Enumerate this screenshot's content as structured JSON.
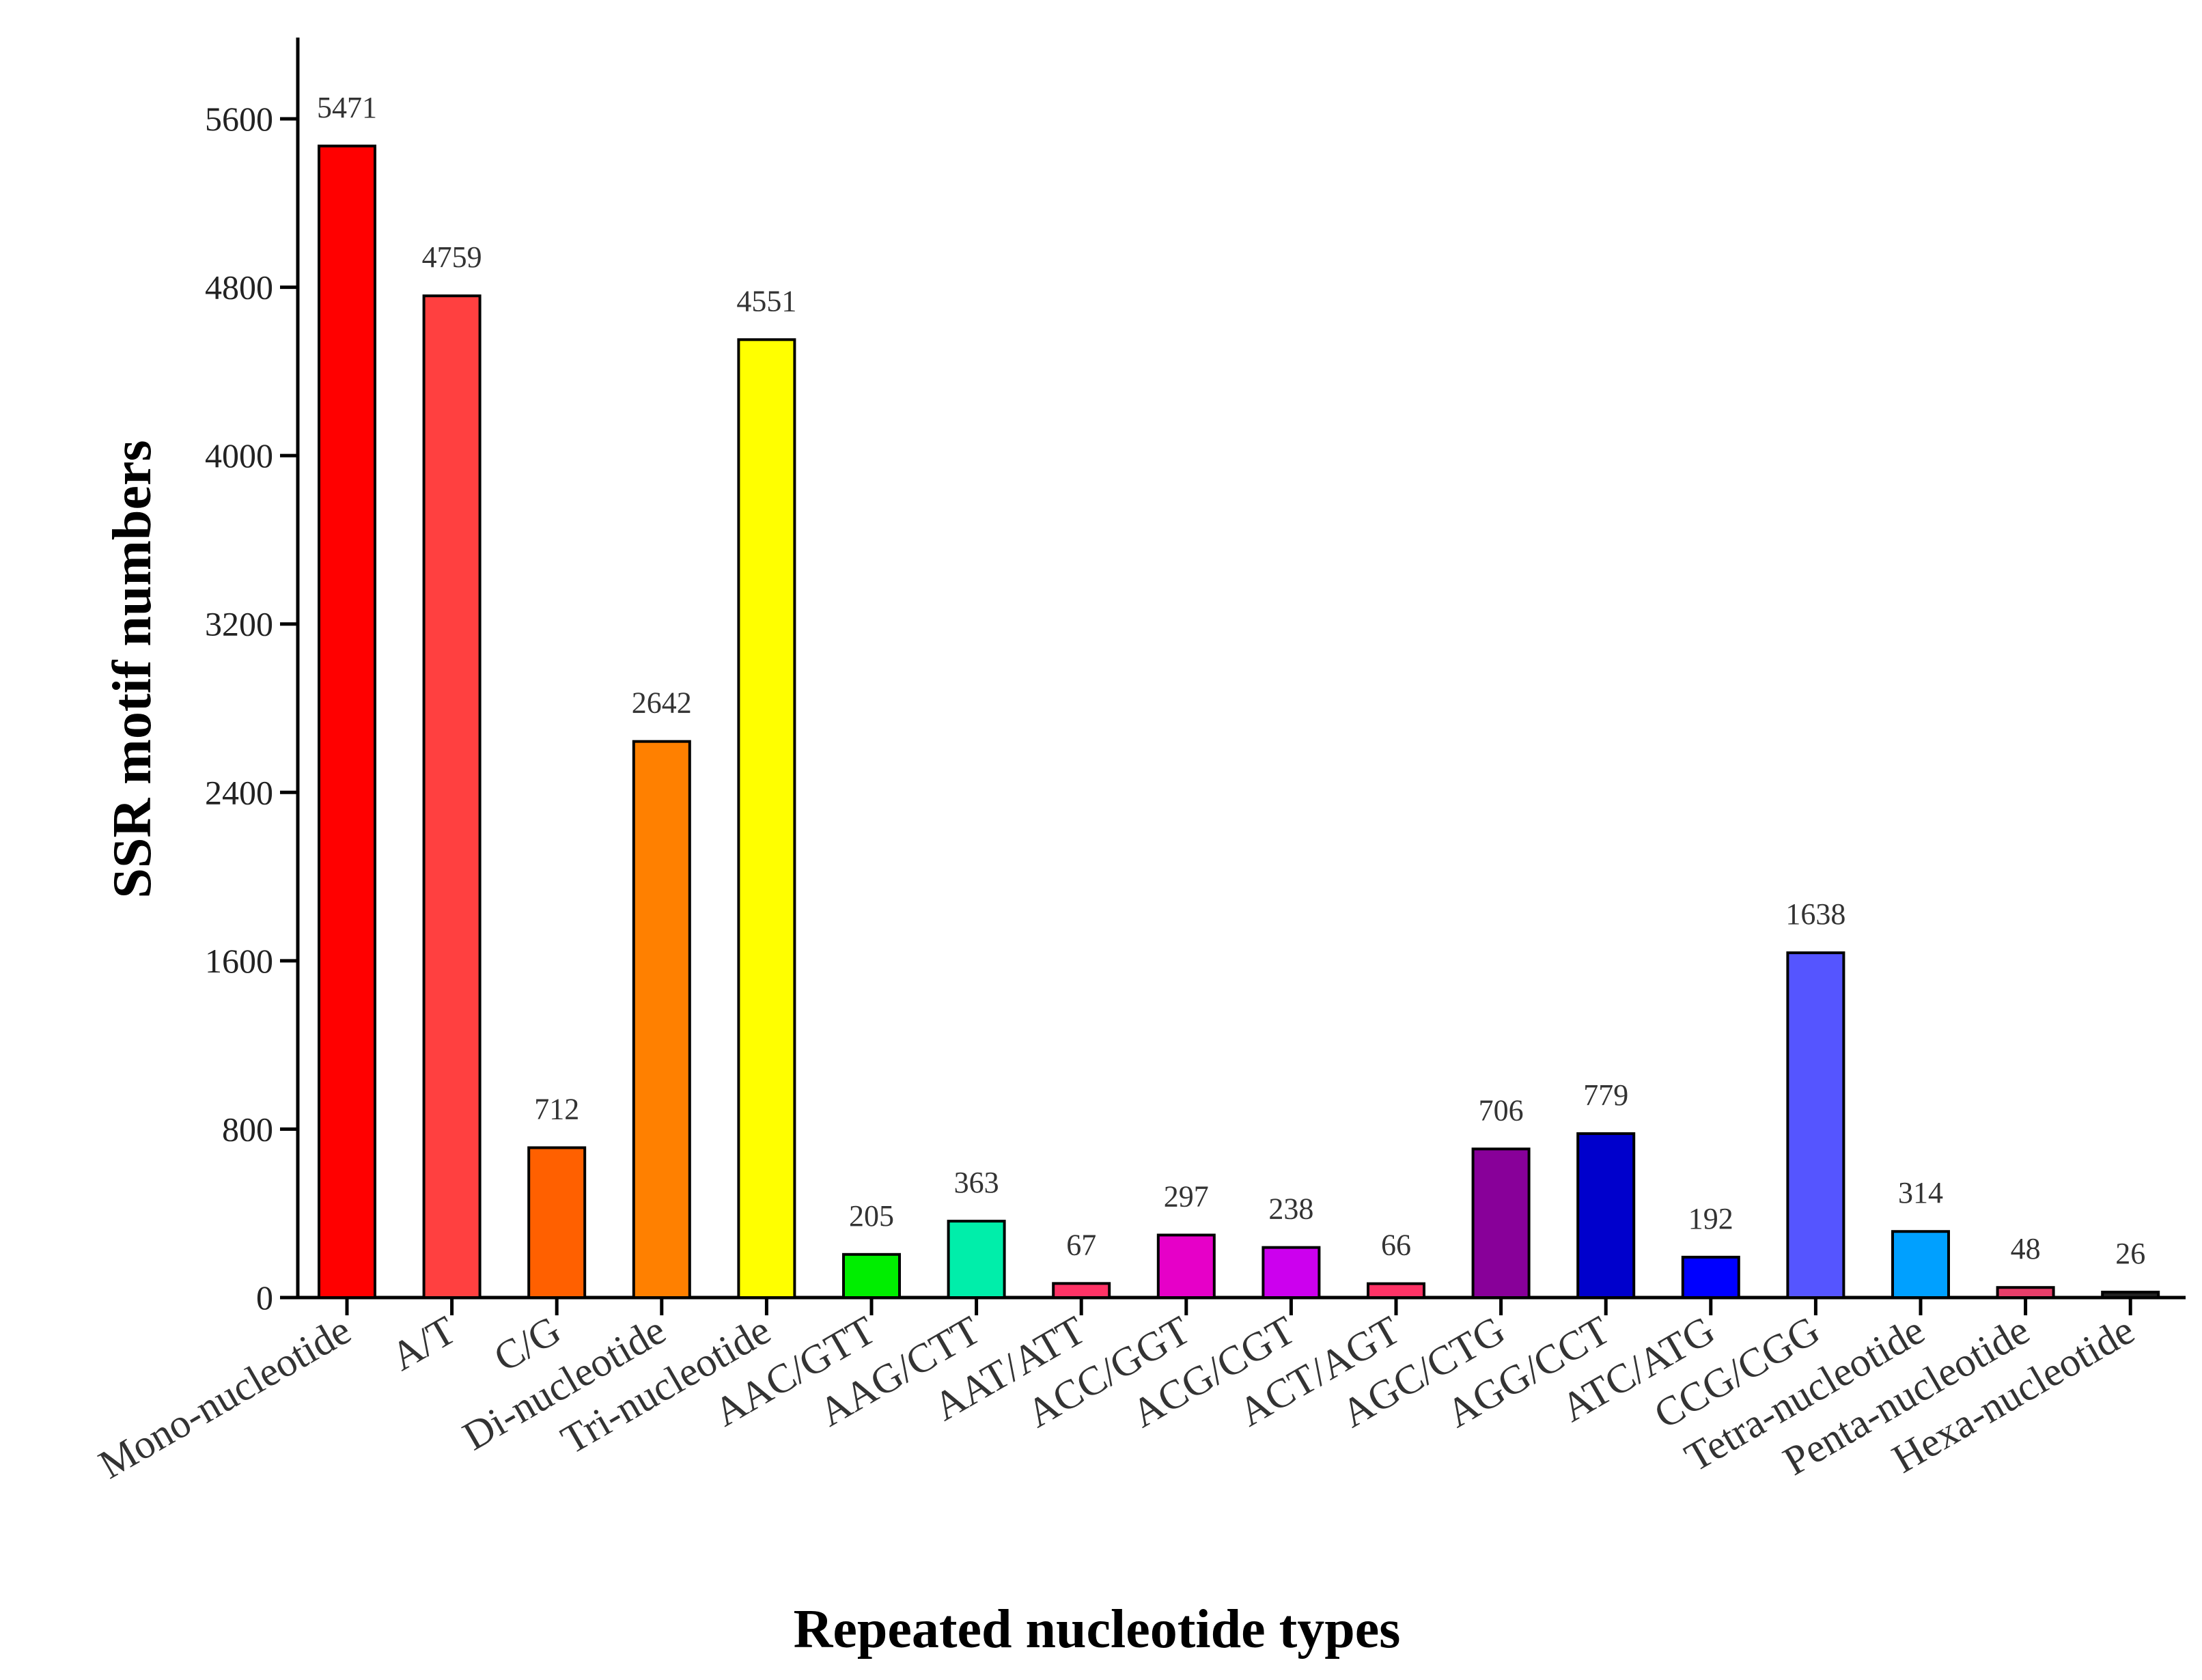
{
  "chart_data": {
    "type": "bar",
    "title": "",
    "xlabel": "Repeated nucleotide types",
    "ylabel": "SSR motif numbers",
    "ylim": [
      0,
      6000
    ],
    "yticks": [
      0,
      800,
      1600,
      2400,
      3200,
      4000,
      4800,
      5600
    ],
    "grid": false,
    "legend": "none",
    "categories": [
      "Mono-nucleotide",
      "A/T",
      "C/G",
      "Di-nucleotide",
      "Tri-nucleotide",
      "AAC/GTT",
      "AAG/CTT",
      "AAT/ATT",
      "ACC/GGT",
      "ACG/CGT",
      "ACT/AGT",
      "AGC/CTG",
      "AGG/CCT",
      "ATC/ATG",
      "CCG/CGG",
      "Tetra-nucleotide",
      "Penta-nucleotide",
      "Hexa-nucleotide"
    ],
    "values": [
      5471,
      4759,
      712,
      2642,
      4551,
      205,
      363,
      67,
      297,
      238,
      66,
      706,
      779,
      192,
      1638,
      314,
      48,
      26
    ],
    "colors": [
      "#ff0000",
      "#ff4040",
      "#ff6000",
      "#ff8000",
      "#ffff00",
      "#00ee00",
      "#00eeaa",
      "#ff3366",
      "#e600c8",
      "#cc00ee",
      "#ff3366",
      "#880099",
      "#0000cc",
      "#0000ff",
      "#5555ff",
      "#00a0ff",
      "#e83e6a",
      "#222222"
    ]
  }
}
